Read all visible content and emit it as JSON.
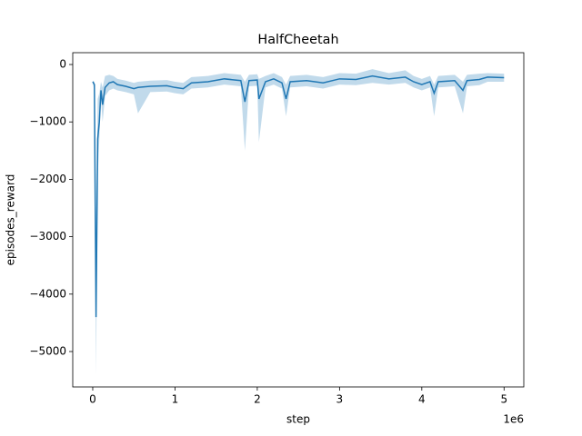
{
  "chart_data": {
    "type": "line",
    "title": "HalfCheetah",
    "xlabel": "step",
    "ylabel": "episodes_reward",
    "x_offset_label": "1e6",
    "color": "#1f77b4",
    "band_color": "#a6cbe3",
    "xlim": [
      -243000,
      5240000
    ],
    "ylim": [
      -5617,
      206
    ],
    "xticks": [
      {
        "value": 0,
        "label": "0"
      },
      {
        "value": 1000000,
        "label": "1"
      },
      {
        "value": 2000000,
        "label": "2"
      },
      {
        "value": 3000000,
        "label": "3"
      },
      {
        "value": 4000000,
        "label": "4"
      },
      {
        "value": 5000000,
        "label": "5"
      }
    ],
    "yticks": [
      0,
      {
        "value": -1000,
        "label": "−1000"
      },
      {
        "value": -2000,
        "label": "−2000"
      },
      {
        "value": -3000,
        "label": "−3000"
      },
      {
        "value": -4000,
        "label": "−4000"
      },
      {
        "value": -5000,
        "label": "−5000"
      }
    ],
    "x": [
      0,
      20000,
      40000,
      60000,
      80000,
      100000,
      120000,
      150000,
      200000,
      250000,
      300000,
      400000,
      500000,
      550000,
      700000,
      900000,
      1000000,
      1100000,
      1200000,
      1400000,
      1600000,
      1800000,
      1850000,
      1900000,
      2000000,
      2020000,
      2100000,
      2200000,
      2300000,
      2350000,
      2400000,
      2600000,
      2800000,
      3000000,
      3200000,
      3400000,
      3600000,
      3800000,
      3900000,
      4000000,
      4100000,
      4150000,
      4200000,
      4400000,
      4500000,
      4550000,
      4700000,
      4800000,
      5000000
    ],
    "values": [
      -300,
      -350,
      -4400,
      -1300,
      -1000,
      -450,
      -700,
      -400,
      -320,
      -300,
      -350,
      -380,
      -420,
      -400,
      -380,
      -370,
      -400,
      -420,
      -320,
      -300,
      -250,
      -280,
      -650,
      -280,
      -270,
      -600,
      -300,
      -250,
      -320,
      -600,
      -300,
      -280,
      -320,
      -250,
      -260,
      -200,
      -250,
      -220,
      -300,
      -350,
      -300,
      -500,
      -300,
      -280,
      -450,
      -280,
      -260,
      -220,
      -230
    ],
    "band_upper": [
      -280,
      -300,
      -3000,
      -600,
      -500,
      -300,
      -400,
      -200,
      -180,
      -200,
      -250,
      -280,
      -320,
      -300,
      -280,
      -270,
      -300,
      -320,
      -220,
      -200,
      -150,
      -180,
      -300,
      -180,
      -170,
      -250,
      -200,
      -150,
      -220,
      -350,
      -200,
      -180,
      -220,
      -150,
      -160,
      -80,
      -150,
      -100,
      -200,
      -250,
      -200,
      -350,
      -200,
      -180,
      -300,
      -180,
      -160,
      -150,
      -160
    ],
    "band_lower": [
      -320,
      -450,
      -5400,
      -2000,
      -1300,
      -600,
      -1000,
      -550,
      -450,
      -420,
      -450,
      -480,
      -520,
      -850,
      -480,
      -470,
      -500,
      -520,
      -420,
      -400,
      -350,
      -380,
      -1500,
      -380,
      -370,
      -1350,
      -400,
      -350,
      -420,
      -900,
      -400,
      -380,
      -420,
      -350,
      -360,
      -320,
      -350,
      -320,
      -400,
      -450,
      -400,
      -900,
      -400,
      -380,
      -850,
      -380,
      -360,
      -300,
      -300
    ]
  }
}
